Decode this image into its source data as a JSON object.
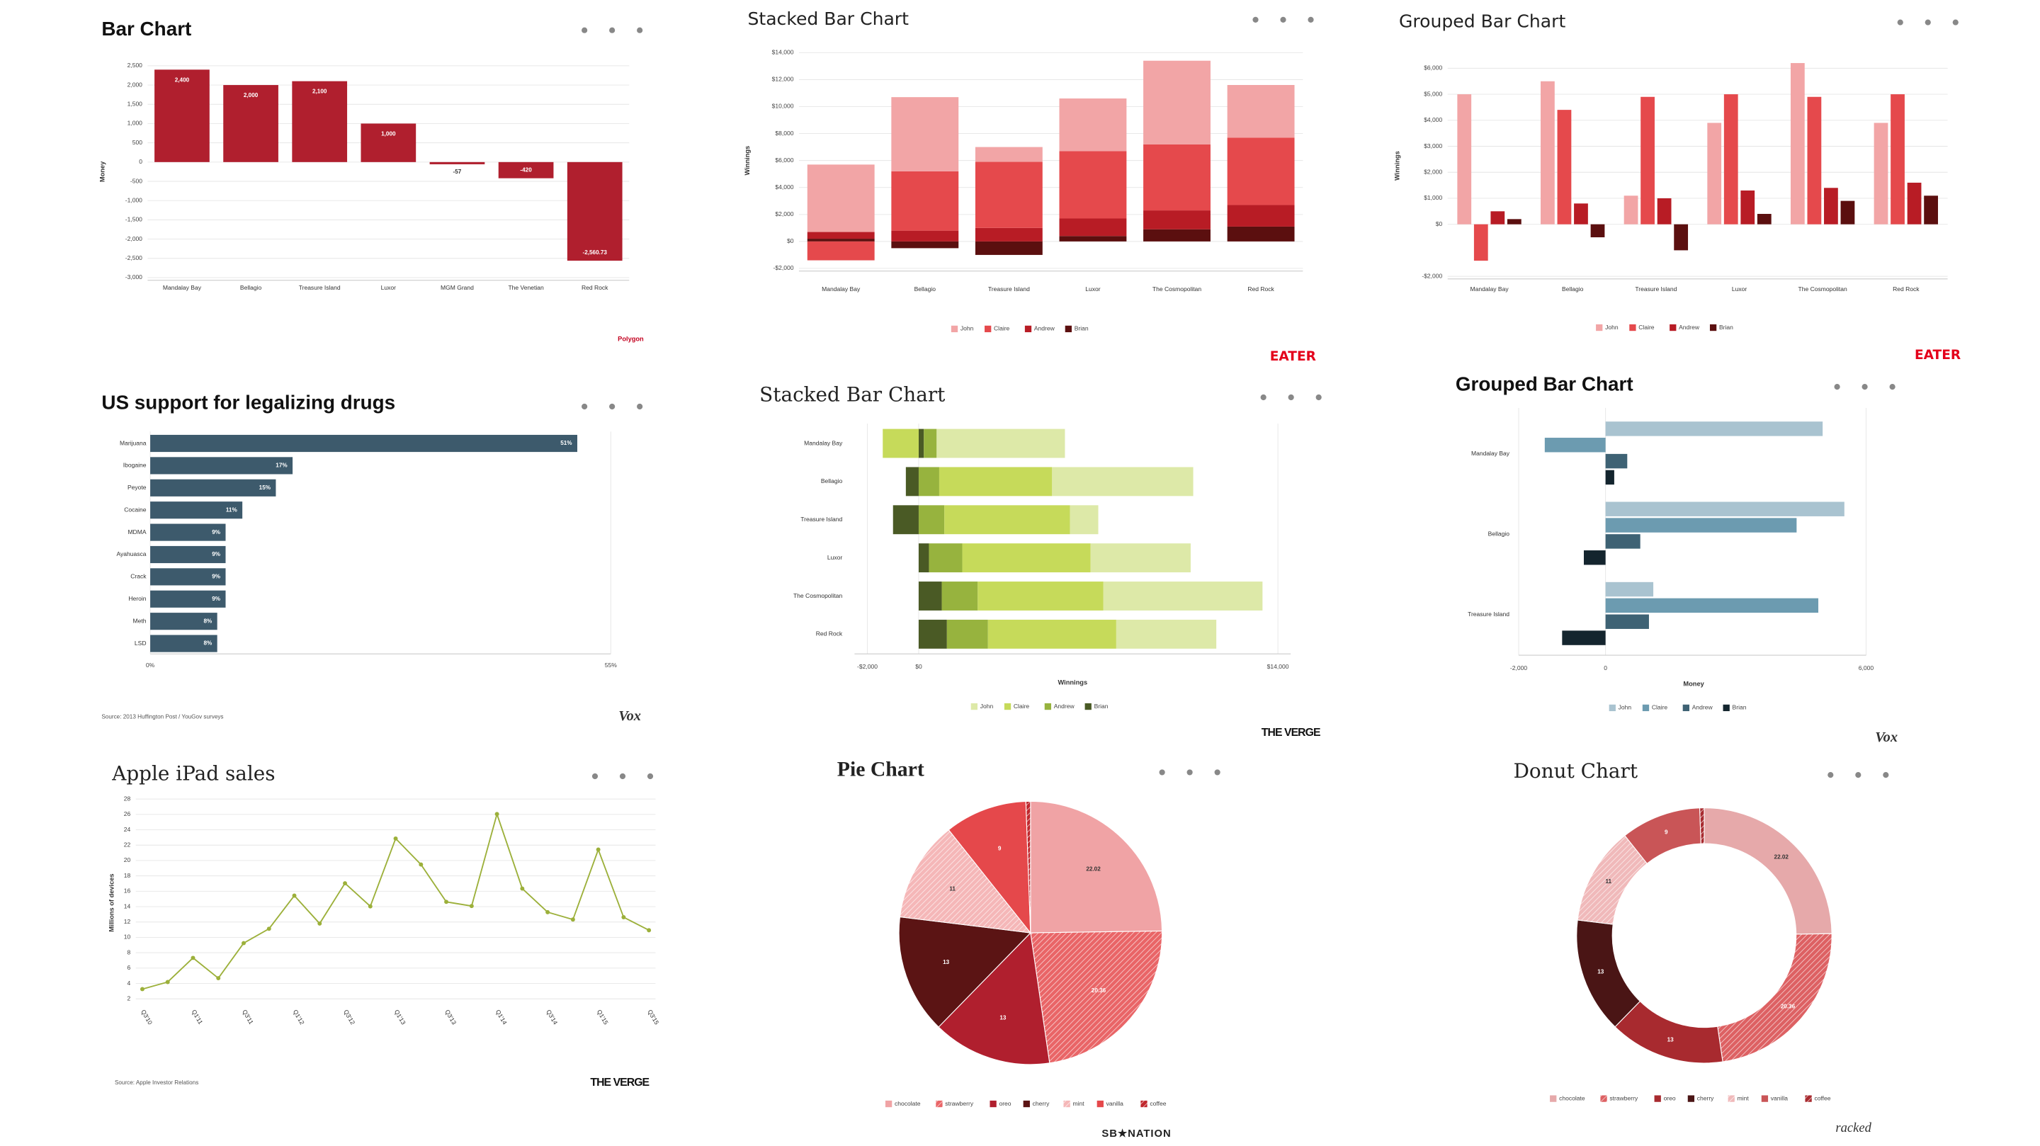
{
  "chart_data": [
    {
      "type": "bar",
      "orientation": "vertical",
      "title": "Bar Chart",
      "y_label": "Money",
      "brand": "Polygon",
      "categories": [
        "Mandalay Bay",
        "Bellagio",
        "Treasure Island",
        "Luxor",
        "MGM Grand",
        "The Venetian",
        "Red Rock"
      ],
      "values": [
        2400,
        2000,
        2100,
        1000,
        -57,
        -420,
        -2560.73
      ],
      "value_labels": [
        "2,400",
        "2,000",
        "2,100",
        "1,000",
        "-57",
        "-420",
        "-2,560.73"
      ],
      "color": "#b01f2e",
      "grid": true,
      "ylim": [
        -3000,
        2500
      ],
      "yticks": [
        {
          "value": -3000,
          "label": "-3,000"
        },
        {
          "value": -2500,
          "label": "-2,500"
        },
        {
          "value": -2000,
          "label": "-2,000"
        },
        {
          "value": -1500,
          "label": "-1,500"
        },
        {
          "value": -1000,
          "label": "-1,000"
        },
        -500,
        0,
        500,
        {
          "value": 1000,
          "label": "1,000"
        },
        {
          "value": 1500,
          "label": "1,500"
        },
        {
          "value": 2000,
          "label": "2,000"
        },
        {
          "value": 2500,
          "label": "2,500"
        }
      ]
    },
    {
      "type": "stacked_bar",
      "orientation": "vertical",
      "title": "Stacked Bar Chart",
      "y_label": "Winnings",
      "brand": "EATER",
      "categories": [
        "Mandalay Bay",
        "Bellagio",
        "Treasure Island",
        "Luxor",
        "The Cosmopolitan",
        "Red Rock"
      ],
      "series": [
        {
          "name": "John",
          "color": "#f2a5a6",
          "values": [
            5000,
            5500,
            1100,
            3900,
            6200,
            3900
          ]
        },
        {
          "name": "Claire",
          "color": "#e5494c",
          "values": [
            -1400,
            4400,
            4900,
            5000,
            4900,
            5000
          ]
        },
        {
          "name": "Andrew",
          "color": "#b81c25",
          "values": [
            500,
            800,
            1000,
            1300,
            1400,
            1600
          ]
        },
        {
          "name": "Brian",
          "color": "#5b0f0f",
          "values": [
            200,
            -500,
            -1000,
            400,
            900,
            1100
          ]
        }
      ],
      "grid": true,
      "ylim": [
        -2000,
        14000
      ],
      "yticks": [
        {
          "value": -2000,
          "label": "-$2,000"
        },
        {
          "value": 0,
          "label": "$0"
        },
        {
          "value": 2000,
          "label": "$2,000"
        },
        {
          "value": 4000,
          "label": "$4,000"
        },
        {
          "value": 6000,
          "label": "$6,000"
        },
        {
          "value": 8000,
          "label": "$8,000"
        },
        {
          "value": 10000,
          "label": "$10,000"
        },
        {
          "value": 12000,
          "label": "$12,000"
        },
        {
          "value": 14000,
          "label": "$14,000"
        }
      ]
    },
    {
      "type": "grouped_bar",
      "orientation": "vertical",
      "title": "Grouped Bar Chart",
      "y_label": "Winnings",
      "brand": "EATER",
      "categories": [
        "Mandalay Bay",
        "Bellagio",
        "Treasure Island",
        "Luxor",
        "The Cosmopolitan",
        "Red Rock"
      ],
      "series": [
        {
          "name": "John",
          "color": "#f2a5a6",
          "values": [
            5000,
            5500,
            1100,
            3900,
            6200,
            3900
          ]
        },
        {
          "name": "Claire",
          "color": "#e5494c",
          "values": [
            -1400,
            4400,
            4900,
            5000,
            4900,
            5000
          ]
        },
        {
          "name": "Andrew",
          "color": "#b81c25",
          "values": [
            500,
            800,
            1000,
            1300,
            1400,
            1600
          ]
        },
        {
          "name": "Brian",
          "color": "#5b0f0f",
          "values": [
            200,
            -500,
            -1000,
            400,
            900,
            1100
          ]
        }
      ],
      "grid": true,
      "ylim": [
        -2000,
        6500
      ],
      "yticks": [
        {
          "value": -2000,
          "label": "-$2,000"
        },
        {
          "value": 0,
          "label": "$0"
        },
        {
          "value": 1000,
          "label": "$1,000"
        },
        {
          "value": 2000,
          "label": "$2,000"
        },
        {
          "value": 3000,
          "label": "$3,000"
        },
        {
          "value": 4000,
          "label": "$4,000"
        },
        {
          "value": 5000,
          "label": "$5,000"
        },
        {
          "value": 6000,
          "label": "$6,000"
        }
      ]
    },
    {
      "type": "bar",
      "orientation": "horizontal",
      "title": "US support for legalizing drugs",
      "brand": "Vox",
      "source": "Source: 2013 Huffington Post / YouGov surveys",
      "categories": [
        "Marijuana",
        "Ibogaine",
        "Peyote",
        "Cocaine",
        "MDMA",
        "Ayahuasca",
        "Crack",
        "Heroin",
        "Meth",
        "LSD"
      ],
      "values": [
        51,
        17,
        15,
        11,
        9,
        9,
        9,
        9,
        8,
        8
      ],
      "value_labels": [
        "51%",
        "17%",
        "15%",
        "11%",
        "9%",
        "9%",
        "9%",
        "9%",
        "8%",
        "8%"
      ],
      "color": "#3d5a6c",
      "grid": true,
      "xlim": [
        0,
        55
      ],
      "xticks": [
        {
          "value": 0,
          "label": "0%"
        },
        {
          "value": 55,
          "label": "55%"
        }
      ]
    },
    {
      "type": "stacked_bar",
      "orientation": "horizontal",
      "title": "Stacked Bar Chart",
      "x_label": "Winnings",
      "brand": "THE VERGE",
      "categories": [
        "Mandalay Bay",
        "Bellagio",
        "Treasure Island",
        "Luxor",
        "The Cosmopolitan",
        "Red Rock"
      ],
      "series": [
        {
          "name": "John",
          "color": "#dde9a8",
          "values": [
            5000,
            5500,
            1100,
            3900,
            6200,
            3900
          ]
        },
        {
          "name": "Claire",
          "color": "#c6da5a",
          "values": [
            -1400,
            4400,
            4900,
            5000,
            4900,
            5000
          ]
        },
        {
          "name": "Andrew",
          "color": "#97b33e",
          "values": [
            500,
            800,
            1000,
            1300,
            1400,
            1600
          ]
        },
        {
          "name": "Brian",
          "color": "#4a5a25",
          "values": [
            200,
            -500,
            -1000,
            400,
            900,
            1100
          ]
        }
      ],
      "grid": true,
      "xlim": [
        -2500,
        14500
      ],
      "xticks": [
        {
          "value": -2000,
          "label": "-$2,000"
        },
        {
          "value": 0,
          "label": "$0"
        },
        {
          "value": 14000,
          "label": "$14,000"
        }
      ]
    },
    {
      "type": "grouped_bar",
      "orientation": "horizontal",
      "title": "Grouped Bar Chart",
      "x_label": "Money",
      "brand": "Vox",
      "categories": [
        "Mandalay Bay",
        "Bellagio",
        "Treasure Island"
      ],
      "series": [
        {
          "name": "John",
          "color": "#a9c3d0",
          "values": [
            5000,
            5500,
            1100
          ]
        },
        {
          "name": "Claire",
          "color": "#6c9bb0",
          "values": [
            -1400,
            4400,
            4900
          ]
        },
        {
          "name": "Andrew",
          "color": "#3e6274",
          "values": [
            500,
            800,
            1000
          ]
        },
        {
          "name": "Brian",
          "color": "#14252e",
          "values": [
            200,
            -500,
            -1000
          ]
        }
      ],
      "grid": true,
      "xlim": [
        -2000,
        6000
      ],
      "xticks": [
        {
          "value": -2000,
          "label": "-2,000"
        },
        0,
        {
          "value": 6000,
          "label": "6,000"
        }
      ]
    },
    {
      "type": "line",
      "title": "Apple iPad sales",
      "y_label": "Millions of devices",
      "brand": "THE VERGE",
      "source": "Source: Apple Investor Relations",
      "categories": [
        "Q3'10",
        null,
        "Q1'11",
        null,
        "Q3'11",
        null,
        "Q1'12",
        null,
        "Q3'12",
        null,
        "Q1'13",
        null,
        "Q3'13",
        null,
        "Q1'14",
        null,
        "Q3'14",
        null,
        "Q1'15",
        null,
        "Q3'15"
      ],
      "values": [
        3.27,
        4.19,
        7.33,
        4.69,
        9.25,
        11.12,
        15.43,
        11.8,
        17.04,
        14.04,
        22.86,
        19.48,
        14.62,
        14.08,
        26.04,
        16.35,
        13.28,
        12.32,
        21.42,
        12.62,
        10.93
      ],
      "color": "#9cb03a",
      "grid": true,
      "ylim": [
        1,
        28
      ],
      "yticks": [
        2,
        4,
        6,
        8,
        10,
        12,
        14,
        16,
        18,
        20,
        22,
        24,
        26,
        28
      ]
    },
    {
      "type": "pie",
      "title": "Pie Chart",
      "brand": "SB★NATION",
      "categories": [
        "chocolate",
        "strawberry",
        "oreo",
        "cherry",
        "mint",
        "vanilla",
        "coffee"
      ],
      "values": [
        22.02,
        20.36,
        13,
        13,
        11,
        9,
        0.5
      ],
      "colors": [
        "#f0a3a5",
        "#e96567",
        "#b01f2e",
        "#5b1414",
        "#f5b7b8",
        "#e5484b",
        "#c0272d"
      ],
      "hatched": [
        false,
        true,
        false,
        false,
        true,
        false,
        true
      ]
    },
    {
      "type": "donut",
      "title": "Donut Chart",
      "brand": "racked",
      "categories": [
        "chocolate",
        "strawberry",
        "oreo",
        "cherry",
        "mint",
        "vanilla",
        "coffee"
      ],
      "values": [
        22.02,
        20.36,
        13,
        13,
        11,
        9,
        0.5
      ],
      "colors": [
        "#e6a9aa",
        "#dd6163",
        "#a82a2f",
        "#4a1515",
        "#f0b9ba",
        "#c95557",
        "#a82a2f"
      ],
      "hatched": [
        false,
        true,
        false,
        false,
        true,
        false,
        true
      ]
    }
  ]
}
